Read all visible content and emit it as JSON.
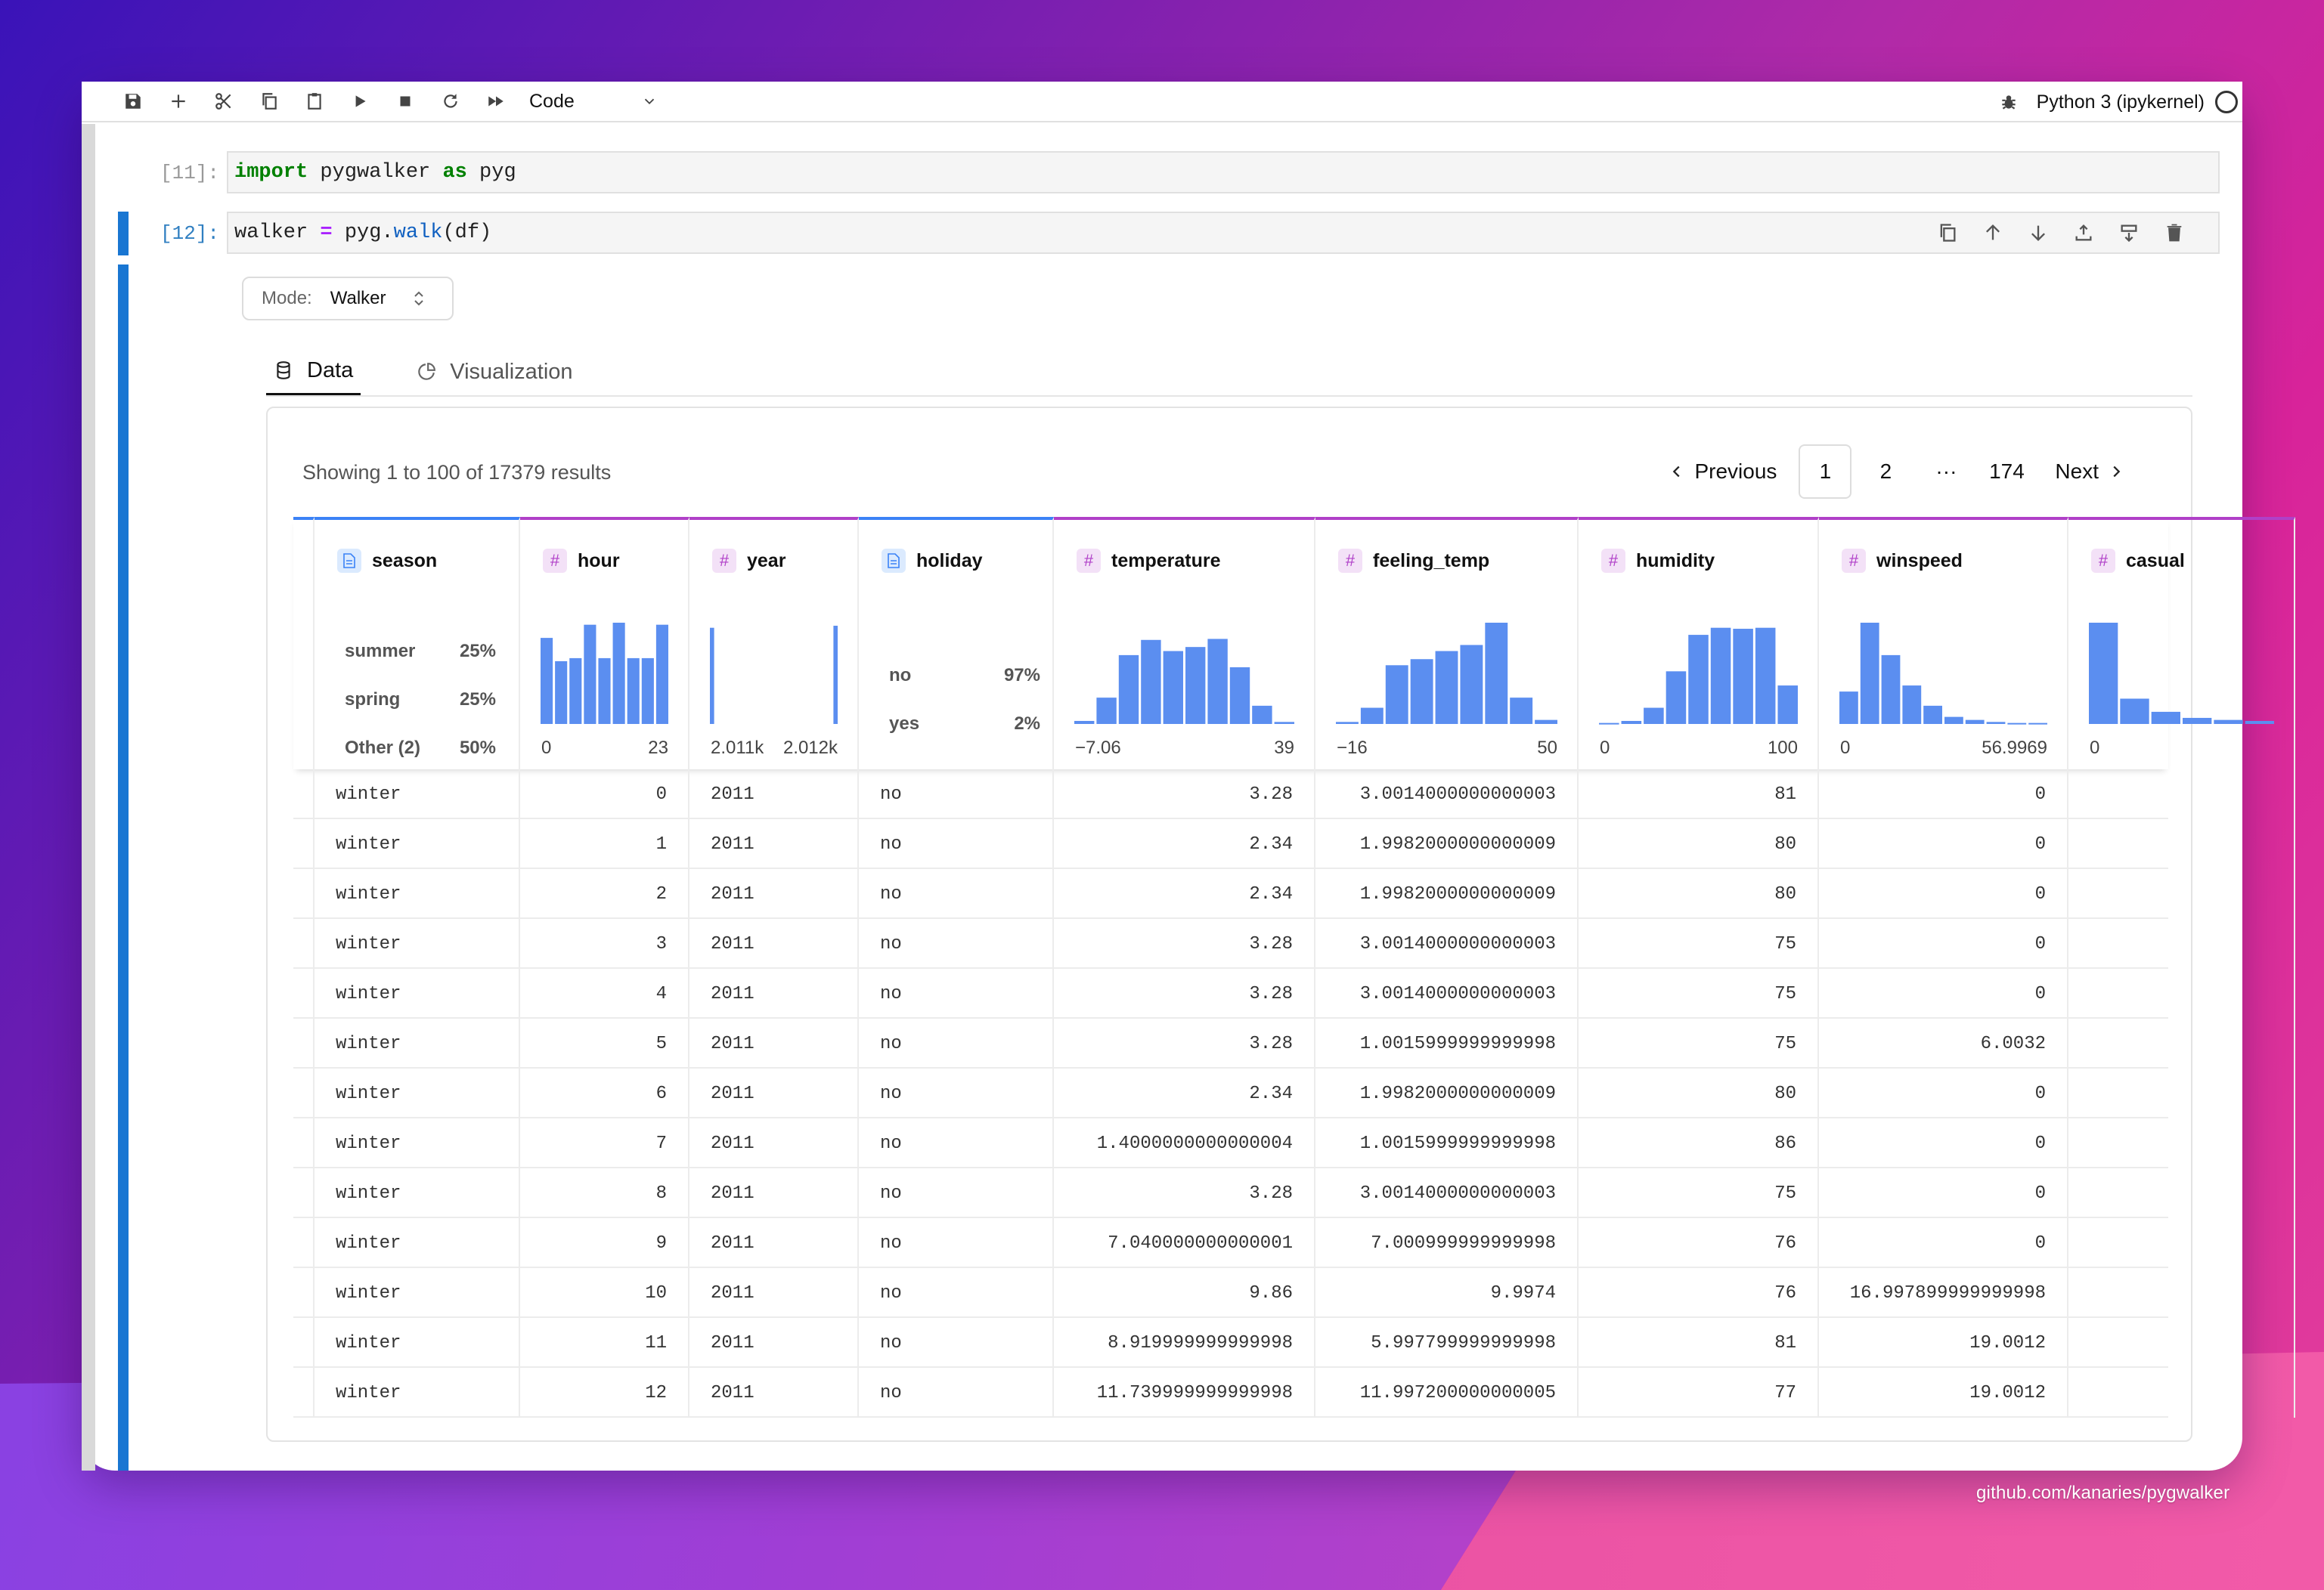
{
  "toolbar": {
    "cell_type": "Code",
    "kernel_name": "Python 3 (ipykernel)"
  },
  "cells": [
    {
      "prompt": "[11]:"
    },
    {
      "prompt": "[12]:"
    }
  ],
  "code": {
    "c11_kw1": "import",
    "c11_mod": " pygwalker ",
    "c11_kw2": "as",
    "c11_alias": " pyg",
    "c12_var": "walker ",
    "c12_eq": "=",
    "c12_obj": " pyg.",
    "c12_fn": "walk",
    "c12_args": "(df)"
  },
  "mode": {
    "label": "Mode:",
    "value": "Walker"
  },
  "tabs": [
    {
      "label": "Data",
      "icon": "database-icon"
    },
    {
      "label": "Visualization",
      "icon": "pie-chart-icon"
    }
  ],
  "showing": "Showing 1 to 100 of 17379 results",
  "pager": {
    "prev": "Previous",
    "pages": [
      "1",
      "2",
      "···",
      "174"
    ],
    "next": "Next"
  },
  "columns": [
    {
      "name": "season",
      "type": "nominal",
      "categories": [
        [
          "summer",
          "25%"
        ],
        [
          "spring",
          "25%"
        ],
        [
          "Other (2)",
          "50%"
        ]
      ]
    },
    {
      "name": "hour",
      "type": "quantitative",
      "min": "0",
      "max": "23",
      "hist": [
        0.85,
        0.62,
        0.65,
        0.98,
        0.65,
        1.0,
        0.65,
        0.65,
        0.98
      ]
    },
    {
      "name": "year",
      "type": "quantitative",
      "min": "2.011k",
      "max": "2.012k",
      "hist": [
        0.95,
        0,
        0,
        0,
        0,
        0,
        0,
        0,
        0,
        0,
        0,
        0,
        0,
        0,
        0,
        0,
        0,
        0,
        0,
        0.97
      ]
    },
    {
      "name": "holiday",
      "type": "nominal",
      "categories": [
        [
          "no",
          "97%"
        ],
        [
          "yes",
          "2%"
        ]
      ]
    },
    {
      "name": "temperature",
      "type": "quantitative",
      "min": "−7.06",
      "max": "39",
      "hist": [
        0.03,
        0.26,
        0.68,
        0.83,
        0.72,
        0.76,
        0.84,
        0.56,
        0.18,
        0.02
      ]
    },
    {
      "name": "feeling_temp",
      "type": "quantitative",
      "min": "−16",
      "max": "50",
      "hist": [
        0.02,
        0.16,
        0.58,
        0.64,
        0.72,
        0.78,
        1.0,
        0.26,
        0.04
      ]
    },
    {
      "name": "humidity",
      "type": "quantitative",
      "min": "0",
      "max": "100",
      "hist": [
        0.01,
        0.03,
        0.16,
        0.52,
        0.88,
        0.95,
        0.94,
        0.95,
        0.38
      ]
    },
    {
      "name": "winspeed",
      "type": "quantitative",
      "min": "0",
      "max": "56.9969",
      "hist": [
        0.32,
        1.0,
        0.68,
        0.38,
        0.18,
        0.07,
        0.04,
        0.02,
        0.01,
        0.01
      ]
    },
    {
      "name": "casual",
      "type": "quantitative",
      "min": "0",
      "max": "",
      "hist": [
        1.0,
        0.25,
        0.12,
        0.06,
        0.04,
        0.03
      ]
    }
  ],
  "rows": [
    [
      "winter",
      "0",
      "2011",
      "no",
      "3.28",
      "3.0014000000000003",
      "81",
      "0"
    ],
    [
      "winter",
      "1",
      "2011",
      "no",
      "2.34",
      "1.9982000000000009",
      "80",
      "0"
    ],
    [
      "winter",
      "2",
      "2011",
      "no",
      "2.34",
      "1.9982000000000009",
      "80",
      "0"
    ],
    [
      "winter",
      "3",
      "2011",
      "no",
      "3.28",
      "3.0014000000000003",
      "75",
      "0"
    ],
    [
      "winter",
      "4",
      "2011",
      "no",
      "3.28",
      "3.0014000000000003",
      "75",
      "0"
    ],
    [
      "winter",
      "5",
      "2011",
      "no",
      "3.28",
      "1.0015999999999998",
      "75",
      "6.0032"
    ],
    [
      "winter",
      "6",
      "2011",
      "no",
      "2.34",
      "1.9982000000000009",
      "80",
      "0"
    ],
    [
      "winter",
      "7",
      "2011",
      "no",
      "1.4000000000000004",
      "1.0015999999999998",
      "86",
      "0"
    ],
    [
      "winter",
      "8",
      "2011",
      "no",
      "3.28",
      "3.0014000000000003",
      "75",
      "0"
    ],
    [
      "winter",
      "9",
      "2011",
      "no",
      "7.040000000000001",
      "7.000999999999998",
      "76",
      "0"
    ],
    [
      "winter",
      "10",
      "2011",
      "no",
      "9.86",
      "9.9974",
      "76",
      "16.997899999999998"
    ],
    [
      "winter",
      "11",
      "2011",
      "no",
      "8.919999999999998",
      "5.997799999999998",
      "81",
      "19.0012"
    ],
    [
      "winter",
      "12",
      "2011",
      "no",
      "11.739999999999998",
      "11.997200000000005",
      "77",
      "19.0012"
    ]
  ],
  "footer": "github.com/kanaries/pygwalker",
  "colors": {
    "accent": "#1976d2",
    "nominal": "#3b82f6",
    "quantitative": "#b040c8",
    "bar": "#5b8ef0"
  }
}
